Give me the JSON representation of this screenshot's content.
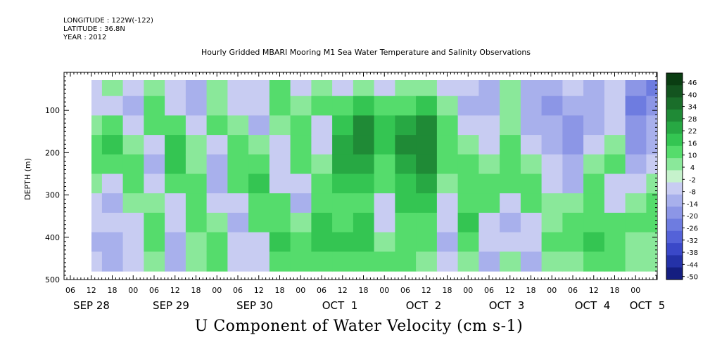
{
  "header": {
    "longitude": "LONGITUDE : 122W(-122)",
    "latitude": "LATITUDE : 36.8N",
    "year": "YEAR : 2012"
  },
  "chart_data": {
    "type": "heatmap",
    "title": "Hourly Gridded MBARI Mooring M1 Sea Water Temperature and Salinity Observations",
    "caption": "U Component of Water Velocity (cm s-1)",
    "ylabel": "DEPTH (m)",
    "ylim": [
      500,
      10
    ],
    "y_ticks": [
      100,
      200,
      300,
      400,
      500
    ],
    "x_hour_ticks": [
      "06",
      "12",
      "18",
      "00",
      "06",
      "12",
      "18",
      "00",
      "06",
      "12",
      "18",
      "00",
      "06",
      "12",
      "18",
      "00",
      "06",
      "12",
      "18",
      "00",
      "06",
      "12",
      "18",
      "00",
      "06",
      "12",
      "18",
      "00"
    ],
    "x_day_labels": [
      "SEP 28",
      "SEP 29",
      "SEP 30",
      "OCT  1",
      "OCT  2",
      "OCT  3",
      "OCT  4",
      "OCT  5"
    ],
    "colorbar": {
      "levels": [
        "46",
        "40",
        "34",
        "28",
        "22",
        "16",
        "10",
        "4",
        "-2",
        "-8",
        "-14",
        "-20",
        "-26",
        "-32",
        "-38",
        "-44",
        "-50"
      ],
      "range": [
        -50,
        50
      ],
      "colors": [
        "#0a3d12",
        "#13541f",
        "#1a6e2a",
        "#1f8a36",
        "#27a843",
        "#34c552",
        "#55dc6c",
        "#8ae89a",
        "#c6f2cc",
        "#c8ccf2",
        "#a8b0ec",
        "#8c96e6",
        "#6e7ce0",
        "#5462d8",
        "#3a48c8",
        "#2432a8",
        "#141e80"
      ]
    },
    "day_centers": {
      "SEP 28": "mostly weak negative with green patches at 150-250 m",
      "OCT  1": "strong positive band 100-250 m"
    },
    "series": [
      {
        "hour_offset": 0,
        "values": [
          -6,
          -8,
          6,
          10,
          14,
          4,
          -8,
          -6,
          -10,
          -4
        ]
      },
      {
        "hour_offset": 6,
        "values": [
          4,
          -6,
          12,
          16,
          10,
          -6,
          -12,
          -8,
          -14,
          -10
        ]
      },
      {
        "hour_offset": 12,
        "values": [
          -8,
          -10,
          -4,
          8,
          12,
          14,
          6,
          -4,
          -6,
          -8
        ]
      },
      {
        "hour_offset": 18,
        "values": [
          8,
          12,
          10,
          -6,
          -10,
          -8,
          6,
          10,
          14,
          8
        ]
      },
      {
        "hour_offset": 24,
        "values": [
          -6,
          -8,
          12,
          18,
          16,
          10,
          -4,
          -8,
          -10,
          -12
        ]
      },
      {
        "hour_offset": 30,
        "values": [
          -10,
          -12,
          -6,
          4,
          8,
          10,
          14,
          12,
          8,
          6
        ]
      },
      {
        "hour_offset": 36,
        "values": [
          6,
          8,
          10,
          -4,
          -10,
          -12,
          -8,
          6,
          12,
          14
        ]
      },
      {
        "hour_offset": 42,
        "values": [
          -8,
          -6,
          4,
          12,
          14,
          10,
          -6,
          -10,
          -8,
          -6
        ]
      },
      {
        "hour_offset": 48,
        "values": [
          -4,
          -8,
          -10,
          8,
          12,
          16,
          14,
          10,
          -4,
          -8
        ]
      },
      {
        "hour_offset": 54,
        "values": [
          10,
          12,
          8,
          -6,
          -8,
          -4,
          10,
          14,
          16,
          12
        ]
      },
      {
        "hour_offset": 60,
        "values": [
          -6,
          4,
          12,
          14,
          10,
          -6,
          -10,
          8,
          12,
          10
        ]
      },
      {
        "hour_offset": 66,
        "values": [
          8,
          10,
          -4,
          -8,
          6,
          12,
          14,
          16,
          18,
          12
        ]
      },
      {
        "hour_offset": 72,
        "values": [
          -4,
          12,
          20,
          26,
          22,
          16,
          12,
          14,
          16,
          10
        ]
      },
      {
        "hour_offset": 78,
        "values": [
          6,
          18,
          28,
          30,
          24,
          18,
          14,
          16,
          18,
          14
        ]
      },
      {
        "hour_offset": 84,
        "values": [
          -6,
          10,
          16,
          18,
          14,
          10,
          -4,
          -8,
          6,
          10
        ]
      },
      {
        "hour_offset": 90,
        "values": [
          4,
          14,
          24,
          28,
          26,
          20,
          16,
          14,
          12,
          10
        ]
      },
      {
        "hour_offset": 96,
        "values": [
          8,
          20,
          30,
          32,
          28,
          22,
          16,
          12,
          10,
          8
        ]
      },
      {
        "hour_offset": 102,
        "values": [
          -4,
          6,
          12,
          14,
          10,
          8,
          -6,
          -8,
          -10,
          -6
        ]
      },
      {
        "hour_offset": 108,
        "values": [
          -8,
          -10,
          -6,
          8,
          12,
          10,
          14,
          16,
          12,
          8
        ]
      },
      {
        "hour_offset": 114,
        "values": [
          -10,
          -12,
          -8,
          -6,
          8,
          12,
          10,
          -6,
          -8,
          -10
        ]
      },
      {
        "hour_offset": 120,
        "values": [
          6,
          8,
          4,
          10,
          14,
          12,
          -8,
          -10,
          -6,
          4
        ]
      },
      {
        "hour_offset": 126,
        "values": [
          -12,
          -14,
          -10,
          -8,
          6,
          10,
          12,
          -6,
          -8,
          -10
        ]
      },
      {
        "hour_offset": 132,
        "values": [
          -14,
          -16,
          -12,
          -10,
          -8,
          -6,
          4,
          8,
          10,
          6
        ]
      },
      {
        "hour_offset": 138,
        "values": [
          -8,
          -10,
          -18,
          -20,
          -14,
          -10,
          6,
          10,
          12,
          8
        ]
      },
      {
        "hour_offset": 144,
        "values": [
          -10,
          -12,
          -10,
          -8,
          6,
          10,
          12,
          14,
          16,
          10
        ]
      },
      {
        "hour_offset": 150,
        "values": [
          -6,
          -8,
          -4,
          8,
          12,
          -6,
          -8,
          10,
          14,
          12
        ]
      },
      {
        "hour_offset": 156,
        "values": [
          -18,
          -22,
          -20,
          -16,
          -12,
          -8,
          6,
          10,
          8,
          6
        ]
      },
      {
        "hour_offset": 162,
        "values": [
          -24,
          -20,
          -14,
          -10,
          -8,
          6,
          10,
          12,
          8,
          4
        ]
      }
    ]
  }
}
